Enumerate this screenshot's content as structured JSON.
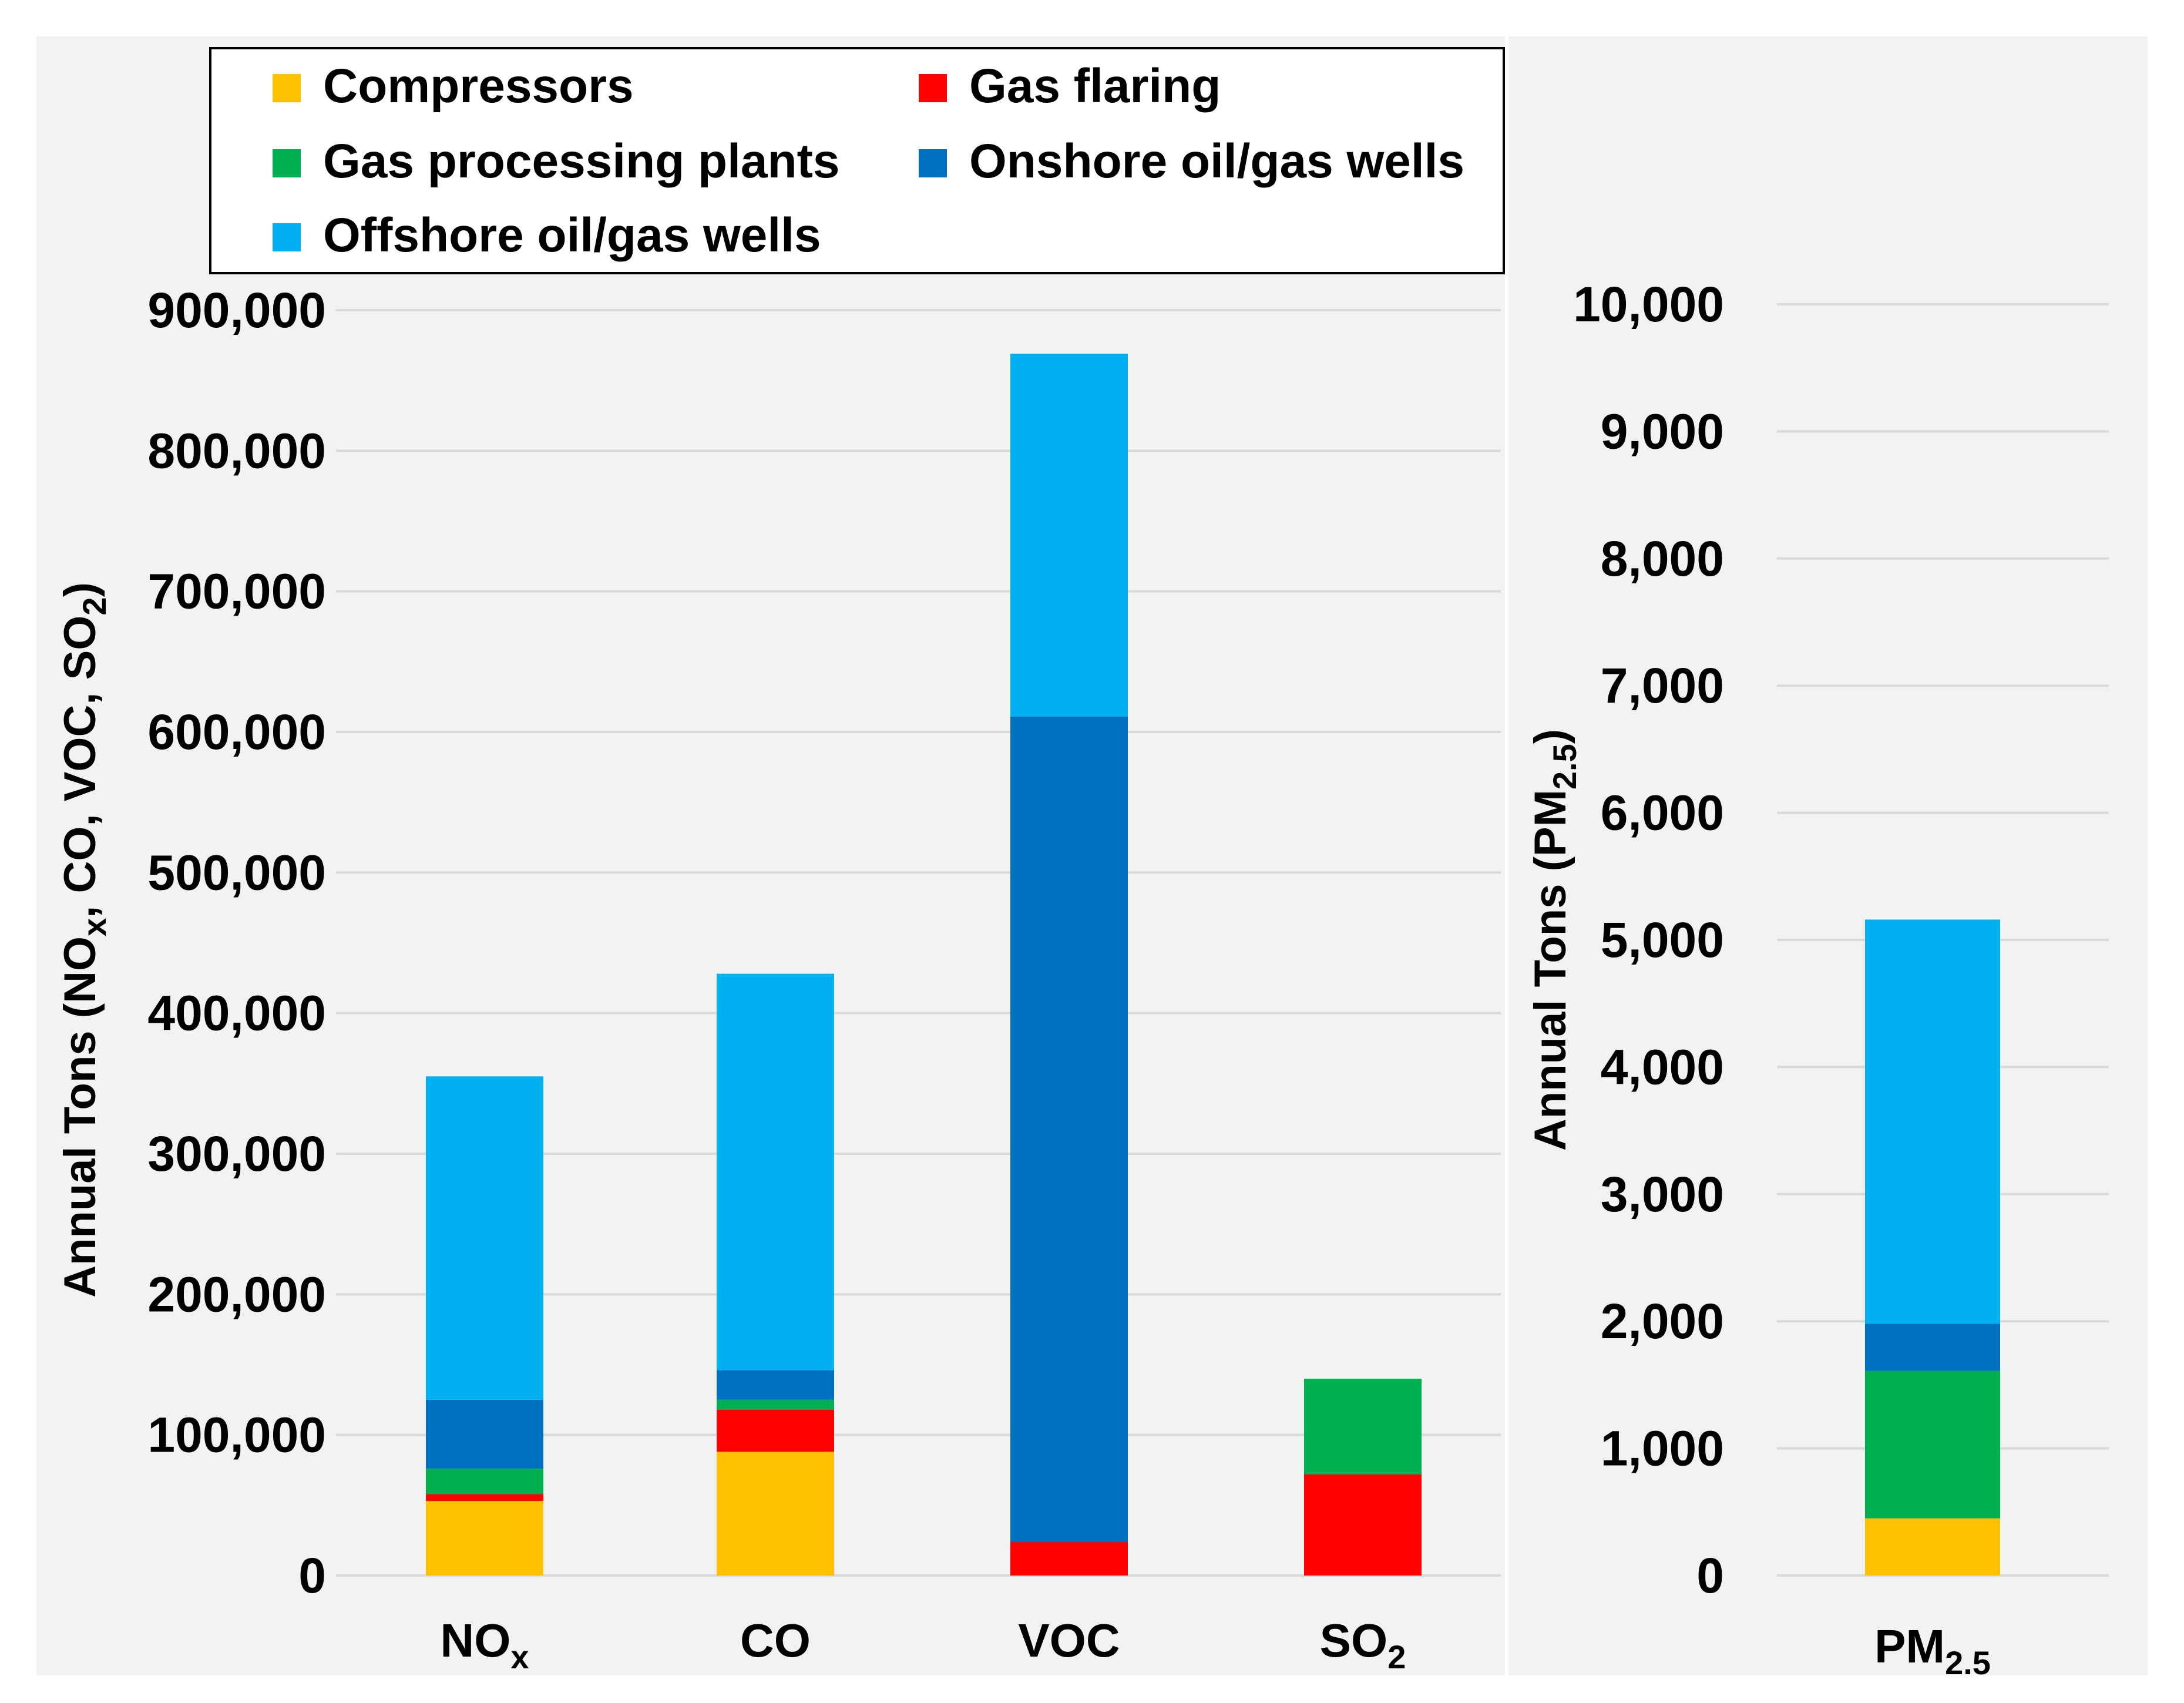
{
  "chart_data": [
    {
      "type": "bar",
      "stacked": true,
      "ylabel": "Annual Tons (NOx, CO, VOC, SO2)",
      "ylabel_parts": [
        "Annual Tons (NO",
        "x",
        ", CO, VOC, SO",
        "2",
        ")"
      ],
      "ylim": [
        0,
        900000
      ],
      "yticks": [
        0,
        100000,
        200000,
        300000,
        400000,
        500000,
        600000,
        700000,
        800000,
        900000
      ],
      "ytick_labels": [
        "0",
        "100,000",
        "200,000",
        "300,000",
        "400,000",
        "500,000",
        "600,000",
        "700,000",
        "800,000",
        "900,000"
      ],
      "categories": [
        "NOx",
        "CO",
        "VOC",
        "SO2"
      ],
      "category_labels": [
        {
          "main": "NO",
          "sub": "x"
        },
        {
          "main": "CO",
          "sub": ""
        },
        {
          "main": "VOC",
          "sub": ""
        },
        {
          "main": "SO",
          "sub": "2"
        }
      ],
      "series": [
        {
          "name": "Compressors",
          "values": [
            53000,
            88000,
            0,
            0
          ]
        },
        {
          "name": "Gas flaring",
          "values": [
            5000,
            30000,
            24000,
            72000
          ]
        },
        {
          "name": "Gas processing plants",
          "values": [
            18000,
            7000,
            0,
            68000
          ]
        },
        {
          "name": "Onshore oil/gas wells",
          "values": [
            49000,
            21000,
            587000,
            0
          ]
        },
        {
          "name": "Offshore oil/gas wells",
          "values": [
            230000,
            282000,
            258000,
            0
          ]
        }
      ],
      "grid": true
    },
    {
      "type": "bar",
      "stacked": true,
      "ylabel": "Annual Tons (PM2.5)",
      "ylabel_parts": [
        "Annual Tons (PM",
        "2.5",
        ")"
      ],
      "ylim": [
        0,
        10000
      ],
      "yticks": [
        0,
        1000,
        2000,
        3000,
        4000,
        5000,
        6000,
        7000,
        8000,
        9000,
        10000
      ],
      "ytick_labels": [
        "0",
        "1,000",
        "2,000",
        "3,000",
        "4,000",
        "5,000",
        "6,000",
        "7,000",
        "8,000",
        "9,000",
        "10,000"
      ],
      "categories": [
        "PM2.5"
      ],
      "category_labels": [
        {
          "main": "PM",
          "sub": "2.5"
        }
      ],
      "series": [
        {
          "name": "Compressors",
          "values": [
            450
          ]
        },
        {
          "name": "Gas flaring",
          "values": [
            0
          ]
        },
        {
          "name": "Gas processing plants",
          "values": [
            1160
          ]
        },
        {
          "name": "Onshore oil/gas wells",
          "values": [
            370
          ]
        },
        {
          "name": "Offshore oil/gas wells",
          "values": [
            3180
          ]
        }
      ],
      "grid": true
    }
  ],
  "legend": {
    "position": "top",
    "items": [
      {
        "name": "Compressors",
        "color": "#FFC000"
      },
      {
        "name": "Gas flaring",
        "color": "#FF0000"
      },
      {
        "name": "Gas processing plants",
        "color": "#00B050"
      },
      {
        "name": "Onshore oil/gas wells",
        "color": "#0070C0"
      },
      {
        "name": "Offshore oil/gas wells",
        "color": "#00B0F0"
      }
    ]
  },
  "colors": {
    "Compressors": "#FFC000",
    "Gas flaring": "#FF0000",
    "Gas processing plants": "#00B050",
    "Onshore oil/gas wells": "#0070C0",
    "Offshore oil/gas wells": "#00B0F0",
    "plot_background": "#F2F2F2",
    "gridline": "#D9D9D9"
  }
}
